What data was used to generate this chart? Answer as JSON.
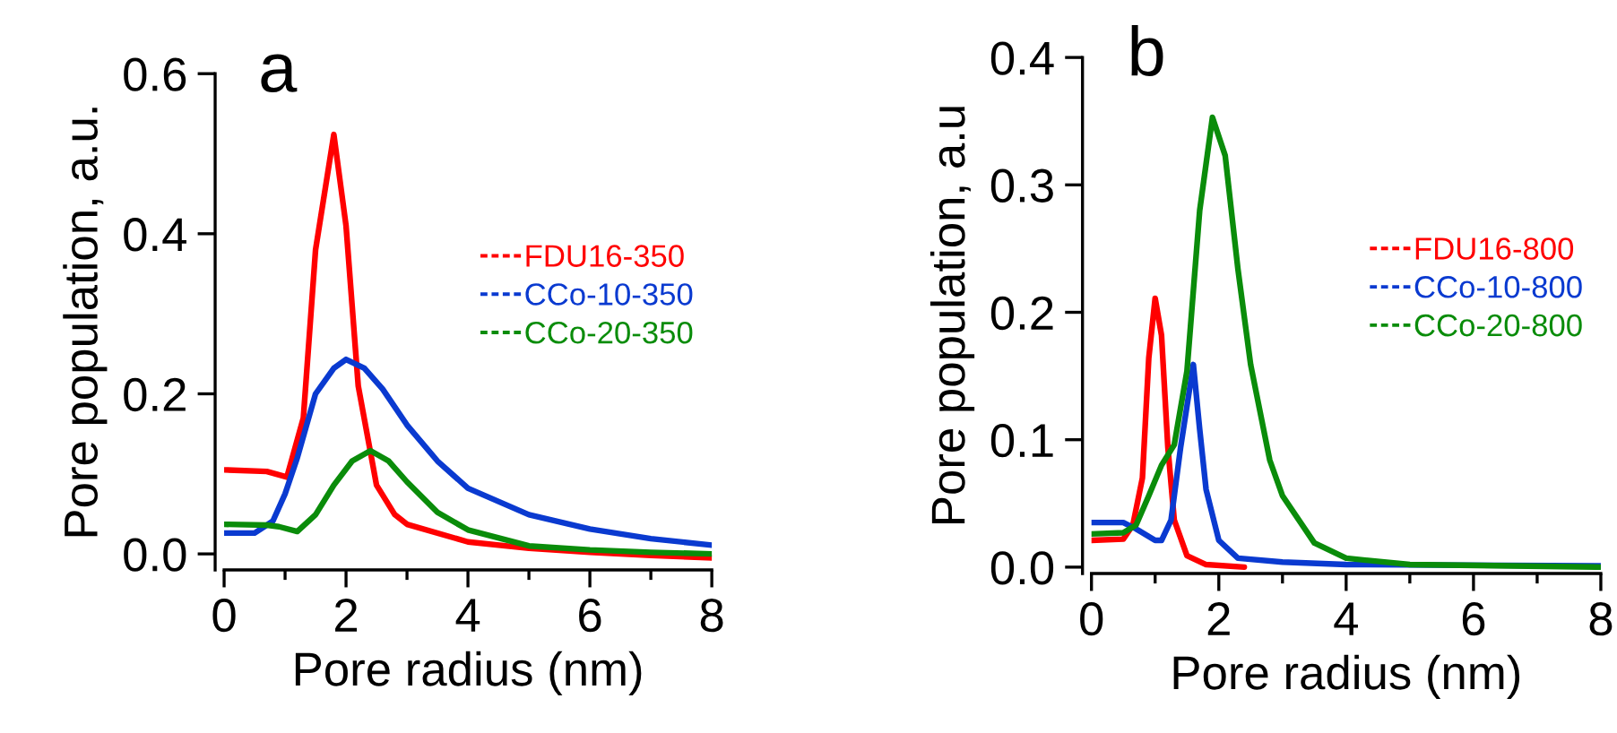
{
  "chart_data": [
    {
      "type": "line",
      "title": "a",
      "xlabel": "Pore radius (nm)",
      "ylabel": "Pore population, a.u.",
      "xlim": [
        0,
        8
      ],
      "ylim": [
        -0.02,
        0.6
      ],
      "xticks": [
        0,
        {
          "value": 1,
          "label": null
        },
        2,
        {
          "value": 3,
          "label": null
        },
        4,
        {
          "value": 5,
          "label": null
        },
        6,
        {
          "value": 7,
          "label": null
        },
        8
      ],
      "yticks": [
        {
          "value": 0,
          "label": "0.0"
        },
        0.2,
        0.4,
        0.6
      ],
      "legend": "center right",
      "grid": false,
      "line_style": "solid",
      "marker": "none",
      "series": [
        {
          "name": "FDU16-350",
          "color": "#ff0000",
          "x": [
            0,
            0.7,
            1.03,
            1.3,
            1.5,
            1.8,
            2.0,
            2.2,
            2.5,
            2.8,
            3,
            4,
            5,
            6,
            7,
            8
          ],
          "values": [
            0.105,
            0.103,
            0.096,
            0.17,
            0.38,
            0.524,
            0.41,
            0.21,
            0.086,
            0.049,
            0.037,
            0.015,
            0.007,
            0.002,
            -0.002,
            -0.005
          ]
        },
        {
          "name": "CCo-10-350",
          "color": "#0a3ad0",
          "x": [
            0,
            0.5,
            0.8,
            1.0,
            1.2,
            1.5,
            1.8,
            2.0,
            2.3,
            2.6,
            3,
            3.5,
            4,
            5,
            6,
            7,
            8
          ],
          "values": [
            0.026,
            0.026,
            0.041,
            0.075,
            0.12,
            0.2,
            0.232,
            0.243,
            0.232,
            0.206,
            0.161,
            0.116,
            0.082,
            0.049,
            0.031,
            0.019,
            0.011
          ]
        },
        {
          "name": "CCo-20-350",
          "color": "#0a8c0a",
          "x": [
            0,
            0.7,
            0.9,
            1.2,
            1.5,
            1.8,
            2.1,
            2.4,
            2.7,
            3,
            3.5,
            4,
            5,
            6,
            7,
            8
          ],
          "values": [
            0.037,
            0.036,
            0.034,
            0.028,
            0.049,
            0.086,
            0.116,
            0.129,
            0.116,
            0.09,
            0.052,
            0.03,
            0.01,
            0.005,
            0.002,
            0.0
          ]
        }
      ]
    },
    {
      "type": "line",
      "title": "b",
      "xlabel": "Pore radius (nm)",
      "ylabel": "Pore population, a.u",
      "xlim": [
        0,
        8
      ],
      "ylim": [
        -0.005,
        0.4
      ],
      "xticks": [
        0,
        {
          "value": 1,
          "label": null
        },
        2,
        {
          "value": 3,
          "label": null
        },
        4,
        {
          "value": 5,
          "label": null
        },
        6,
        {
          "value": 7,
          "label": null
        },
        8
      ],
      "yticks": [
        {
          "value": 0,
          "label": "0.0"
        },
        0.1,
        0.2,
        0.3,
        0.4
      ],
      "legend": "center right",
      "grid": false,
      "line_style": "solid",
      "marker": "none",
      "series": [
        {
          "name": "FDU16-800",
          "color": "#ff0000",
          "x": [
            0,
            0.5,
            0.65,
            0.8,
            0.9,
            1.0,
            1.1,
            1.2,
            1.3,
            1.5,
            1.8,
            2.4
          ],
          "values": [
            0.021,
            0.022,
            0.033,
            0.07,
            0.164,
            0.211,
            0.182,
            0.094,
            0.037,
            0.009,
            0.002,
            0.0
          ]
        },
        {
          "name": "CCo-10-800",
          "color": "#0a3ad0",
          "x": [
            0,
            0.5,
            0.7,
            1.0,
            1.1,
            1.25,
            1.4,
            1.6,
            1.7,
            1.8,
            2.0,
            2.3,
            3,
            4,
            8
          ],
          "values": [
            0.035,
            0.035,
            0.03,
            0.021,
            0.021,
            0.037,
            0.094,
            0.159,
            0.108,
            0.061,
            0.021,
            0.007,
            0.004,
            0.002,
            0.001
          ]
        },
        {
          "name": "CCo-20-800",
          "color": "#0a8c0a",
          "x": [
            0,
            0.5,
            0.7,
            0.9,
            1.1,
            1.3,
            1.5,
            1.7,
            1.9,
            2.1,
            2.3,
            2.5,
            2.8,
            3.0,
            3.5,
            4,
            5,
            8
          ],
          "values": [
            0.026,
            0.027,
            0.033,
            0.056,
            0.08,
            0.096,
            0.154,
            0.28,
            0.353,
            0.323,
            0.234,
            0.159,
            0.084,
            0.056,
            0.019,
            0.007,
            0.002,
            0.0
          ]
        }
      ]
    }
  ]
}
